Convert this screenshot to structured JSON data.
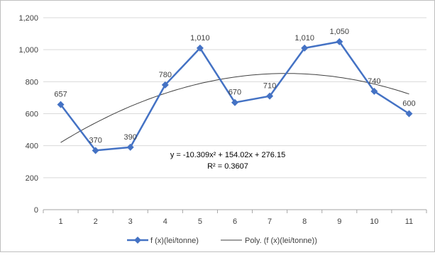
{
  "chart_data": {
    "type": "line",
    "categories": [
      "1",
      "2",
      "3",
      "4",
      "5",
      "6",
      "7",
      "8",
      "9",
      "10",
      "11"
    ],
    "series": [
      {
        "name": "f (x)(lei/tonne)",
        "values": [
          657,
          370,
          390,
          780,
          1010,
          670,
          710,
          1010,
          1050,
          740,
          600
        ],
        "data_labels": [
          "657",
          "370",
          "390",
          "780",
          "1,010",
          "670",
          "710",
          "1,010",
          "1,050",
          "740",
          "600"
        ],
        "color": "#4472c4",
        "marker": "diamond"
      }
    ],
    "trendline": {
      "name": "Poly. (f (x)(lei/tonne))",
      "type": "polynomial",
      "order": 2,
      "coefficients": {
        "a": -10.309,
        "b": 154.02,
        "c": 276.15
      },
      "equation_label": "y = -10.309x² + 154.02x + 276.15",
      "r2_label": "R² = 0.3607",
      "color": "#404040"
    },
    "ylim": [
      0,
      1200
    ],
    "ytick_values": [
      0,
      200,
      400,
      600,
      800,
      1000,
      1200
    ],
    "ytick_labels": [
      "0",
      "200",
      "400",
      "600",
      "800",
      "1,000",
      "1,200"
    ],
    "grid": true,
    "legend_position": "bottom",
    "title": "",
    "xlabel": "",
    "ylabel": ""
  }
}
